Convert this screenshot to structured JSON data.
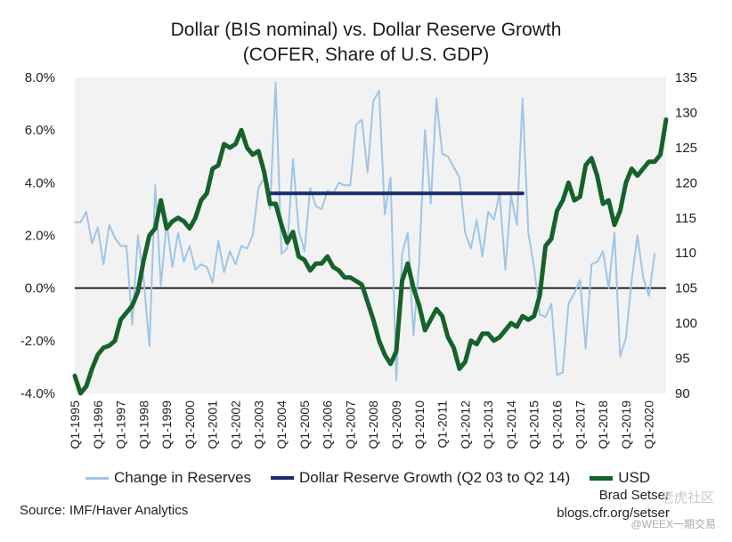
{
  "title_line1": "Dollar (BIS nominal) vs. Dollar Reserve Growth",
  "title_line2": "(COFER, Share of U.S. GDP)",
  "source": "Source: IMF/Haver Analytics",
  "author": "Brad Setser",
  "url": "blogs.cfr.org/setser",
  "watermark": "@WEEX一期交易",
  "watermark_logo": "老虎社区",
  "chart_data": {
    "type": "line",
    "title": "Dollar (BIS nominal) vs. Dollar Reserve Growth",
    "subtitle": "(COFER, Share of U.S. GDP)",
    "grid": false,
    "legend_placement": "bottom",
    "left_axis": {
      "ticks": [
        "8.0%",
        "6.0%",
        "4.0%",
        "2.0%",
        "0.0%",
        "-2.0%",
        "-4.0%"
      ],
      "ylim": [
        -4,
        8
      ]
    },
    "right_axis": {
      "ticks": [
        "135",
        "130",
        "125",
        "120",
        "115",
        "110",
        "105",
        "100",
        "95",
        "90"
      ],
      "ylim": [
        90,
        135
      ]
    },
    "x_ticks": [
      "Q1-1995",
      "Q1-1996",
      "Q1-1997",
      "Q1-1998",
      "Q1-1999",
      "Q1-2000",
      "Q1-2001",
      "Q1-2002",
      "Q1-2003",
      "Q1-2004",
      "Q1-2005",
      "Q1-2006",
      "Q1-2007",
      "Q1-2008",
      "Q1-2009",
      "Q1-2010",
      "Q1-2011",
      "Q1-2012",
      "Q1-2013",
      "Q1-2014",
      "Q1-2015",
      "Q1-2016",
      "Q1-2017",
      "Q1-2018",
      "Q1-2019",
      "Q1-2020"
    ],
    "x_range": [
      1995.0,
      2020.75
    ],
    "series": [
      {
        "name": "Change in Reserves",
        "axis": "left",
        "color": "#9ec5e8",
        "x": [
          1995.0,
          1995.25,
          1995.5,
          1995.75,
          1996.0,
          1996.25,
          1996.5,
          1996.75,
          1997.0,
          1997.25,
          1997.5,
          1997.75,
          1998.0,
          1998.25,
          1998.5,
          1998.75,
          1999.0,
          1999.25,
          1999.5,
          1999.75,
          2000.0,
          2000.25,
          2000.5,
          2000.75,
          2001.0,
          2001.25,
          2001.5,
          2001.75,
          2002.0,
          2002.25,
          2002.5,
          2002.75,
          2003.0,
          2003.25,
          2003.5,
          2003.75,
          2004.0,
          2004.25,
          2004.5,
          2004.75,
          2005.0,
          2005.25,
          2005.5,
          2005.75,
          2006.0,
          2006.25,
          2006.5,
          2006.75,
          2007.0,
          2007.25,
          2007.5,
          2007.75,
          2008.0,
          2008.25,
          2008.5,
          2008.75,
          2009.0,
          2009.25,
          2009.5,
          2009.75,
          2010.0,
          2010.25,
          2010.5,
          2010.75,
          2011.0,
          2011.25,
          2011.5,
          2011.75,
          2012.0,
          2012.25,
          2012.5,
          2012.75,
          2013.0,
          2013.25,
          2013.5,
          2013.75,
          2014.0,
          2014.25,
          2014.5,
          2014.75,
          2015.0,
          2015.25,
          2015.5,
          2015.75,
          2016.0,
          2016.25,
          2016.5,
          2016.75,
          2017.0,
          2017.25,
          2017.5,
          2017.75,
          2018.0,
          2018.25,
          2018.5,
          2018.75,
          2019.0,
          2019.25,
          2019.5,
          2019.75,
          2020.0,
          2020.25
        ],
        "values": [
          2.5,
          2.5,
          2.9,
          1.7,
          2.3,
          0.9,
          2.4,
          1.9,
          1.6,
          1.6,
          -1.4,
          2.0,
          0.3,
          -2.2,
          3.9,
          0.1,
          2.5,
          0.8,
          2.1,
          1.0,
          1.6,
          0.7,
          0.9,
          0.8,
          0.2,
          1.8,
          0.6,
          1.4,
          0.9,
          1.6,
          1.5,
          2.0,
          3.8,
          4.2,
          3.0,
          7.8,
          1.3,
          1.5,
          4.9,
          2.2,
          1.4,
          3.8,
          3.1,
          3.0,
          3.7,
          3.6,
          4.0,
          3.9,
          3.9,
          6.2,
          6.4,
          4.4,
          7.1,
          7.5,
          2.8,
          4.2,
          -3.5,
          1.3,
          2.1,
          -1.8,
          1.0,
          6.0,
          3.2,
          7.2,
          5.1,
          5.0,
          4.6,
          4.2,
          2.1,
          1.5,
          2.6,
          1.2,
          2.9,
          2.6,
          3.6,
          0.7,
          3.5,
          2.4,
          7.2,
          2.1,
          0.8,
          -1.0,
          -1.1,
          -0.6,
          -3.3,
          -3.2,
          -0.6,
          -0.2,
          0.3,
          -2.3,
          0.9,
          1.0,
          1.4,
          0.0,
          2.1,
          -2.6,
          -1.9,
          0.3,
          2.0,
          0.4,
          -0.3,
          1.3
        ]
      },
      {
        "name": "Dollar Reserve Growth (Q2 03 to Q2 14)",
        "axis": "left",
        "color": "#1a2c6b",
        "x": [
          2003.5,
          2014.5
        ],
        "values": [
          3.6,
          3.6
        ]
      },
      {
        "name": "USD",
        "axis": "right",
        "color": "#15622a",
        "x": [
          1995.0,
          1995.25,
          1995.5,
          1995.75,
          1996.0,
          1996.25,
          1996.5,
          1996.75,
          1997.0,
          1997.25,
          1997.5,
          1997.75,
          1998.0,
          1998.25,
          1998.5,
          1998.75,
          1999.0,
          1999.25,
          1999.5,
          1999.75,
          2000.0,
          2000.25,
          2000.5,
          2000.75,
          2001.0,
          2001.25,
          2001.5,
          2001.75,
          2002.0,
          2002.25,
          2002.5,
          2002.75,
          2003.0,
          2003.25,
          2003.5,
          2003.75,
          2004.0,
          2004.25,
          2004.5,
          2004.75,
          2005.0,
          2005.25,
          2005.5,
          2005.75,
          2006.0,
          2006.25,
          2006.5,
          2006.75,
          2007.0,
          2007.25,
          2007.5,
          2007.75,
          2008.0,
          2008.25,
          2008.5,
          2008.75,
          2009.0,
          2009.25,
          2009.5,
          2009.75,
          2010.0,
          2010.25,
          2010.5,
          2010.75,
          2011.0,
          2011.25,
          2011.5,
          2011.75,
          2012.0,
          2012.25,
          2012.5,
          2012.75,
          2013.0,
          2013.25,
          2013.5,
          2013.75,
          2014.0,
          2014.25,
          2014.5,
          2014.75,
          2015.0,
          2015.25,
          2015.5,
          2015.75,
          2016.0,
          2016.25,
          2016.5,
          2016.75,
          2017.0,
          2017.25,
          2017.5,
          2017.75,
          2018.0,
          2018.25,
          2018.5,
          2018.75,
          2019.0,
          2019.25,
          2019.5,
          2019.75,
          2020.0,
          2020.25,
          2020.5,
          2020.75
        ],
        "values": [
          92.5,
          90.0,
          91.0,
          93.5,
          95.5,
          96.5,
          96.8,
          97.5,
          100.5,
          101.5,
          102.5,
          104.5,
          109.0,
          112.5,
          113.5,
          117.5,
          113.5,
          114.5,
          115.0,
          114.5,
          113.5,
          115.0,
          117.5,
          118.5,
          122.0,
          122.5,
          125.5,
          125.0,
          125.5,
          127.5,
          125.0,
          124.0,
          124.5,
          121.5,
          117.0,
          117.0,
          114.0,
          111.5,
          113.0,
          109.5,
          109.0,
          107.5,
          108.5,
          108.5,
          109.5,
          108.0,
          107.5,
          106.5,
          106.5,
          106.0,
          105.5,
          103.0,
          100.5,
          97.5,
          95.5,
          94.2,
          96.0,
          106.0,
          108.5,
          105.0,
          102.5,
          99.0,
          100.5,
          102.0,
          101.0,
          98.0,
          96.5,
          93.5,
          94.5,
          97.5,
          97.0,
          98.5,
          98.5,
          97.5,
          98.0,
          99.0,
          100.0,
          99.5,
          101.0,
          100.5,
          101.0,
          104.0,
          111.0,
          112.0,
          116.0,
          117.5,
          120.0,
          117.5,
          118.0,
          122.5,
          123.5,
          121.0,
          117.0,
          117.5,
          114.0,
          116.0,
          120.0,
          122.0,
          121.0,
          122.0,
          123.0,
          123.0,
          124.0,
          129.0
        ]
      }
    ]
  }
}
